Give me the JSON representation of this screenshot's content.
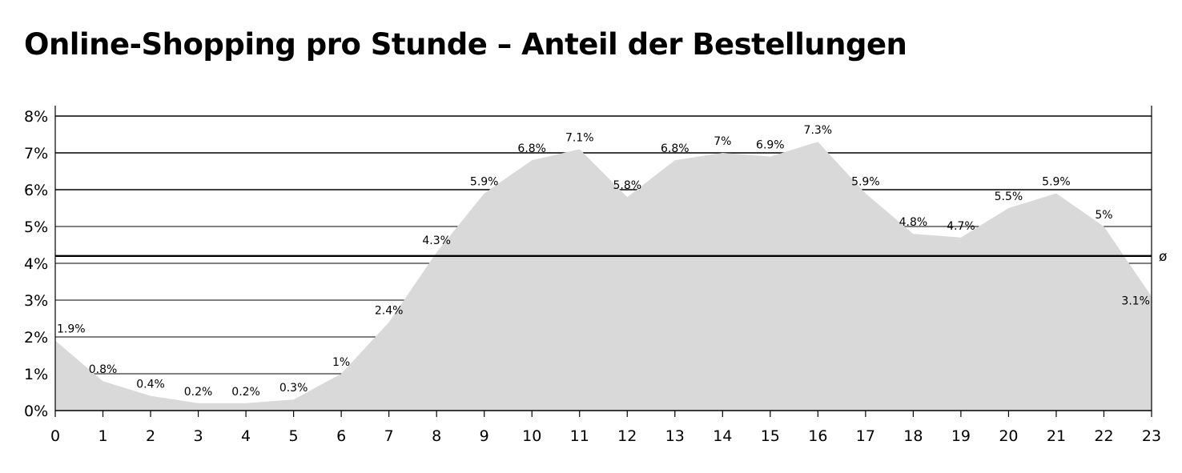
{
  "chart_data": {
    "type": "area",
    "title": "Online-Shopping pro Stunde – Anteil der Bestellungen",
    "xlabel": "",
    "ylabel": "",
    "x": [
      0,
      1,
      2,
      3,
      4,
      5,
      6,
      7,
      8,
      9,
      10,
      11,
      12,
      13,
      14,
      15,
      16,
      17,
      18,
      19,
      20,
      21,
      22,
      23
    ],
    "x_tick_labels": [
      "0",
      "1",
      "2",
      "3",
      "4",
      "5",
      "6",
      "7",
      "8",
      "9",
      "10",
      "11",
      "12",
      "13",
      "14",
      "15",
      "16",
      "17",
      "18",
      "19",
      "20",
      "21",
      "22",
      "23"
    ],
    "values": [
      1.9,
      0.8,
      0.4,
      0.2,
      0.2,
      0.3,
      1,
      2.4,
      4.3,
      5.9,
      6.8,
      7.1,
      5.8,
      6.8,
      7,
      6.9,
      7.3,
      5.9,
      4.8,
      4.7,
      5.5,
      5.9,
      5,
      3.1
    ],
    "data_labels": [
      "1.9%",
      "0.8%",
      "0.4%",
      "0.2%",
      "0.2%",
      "0.3%",
      "1%",
      "2.4%",
      "4.3%",
      "5.9%",
      "6.8%",
      "7.1%",
      "5.8%",
      "6.8%",
      "7%",
      "6.9%",
      "7.3%",
      "5.9%",
      "4.8%",
      "4.7%",
      "5.5%",
      "5.9%",
      "5%",
      "3.1%"
    ],
    "y_ticks": [
      0,
      1,
      2,
      3,
      4,
      5,
      6,
      7,
      8
    ],
    "y_tick_labels": [
      "0%",
      "1%",
      "2%",
      "3%",
      "4%",
      "5%",
      "6%",
      "7%",
      "8%"
    ],
    "ylim": [
      0,
      8
    ],
    "xlim": [
      0,
      23
    ],
    "average": 4.2,
    "average_label": "ø",
    "grid": true,
    "legend": "none",
    "colors": {
      "area": "#d9d9d9",
      "grid": "#000000",
      "average_line": "#000000"
    }
  }
}
